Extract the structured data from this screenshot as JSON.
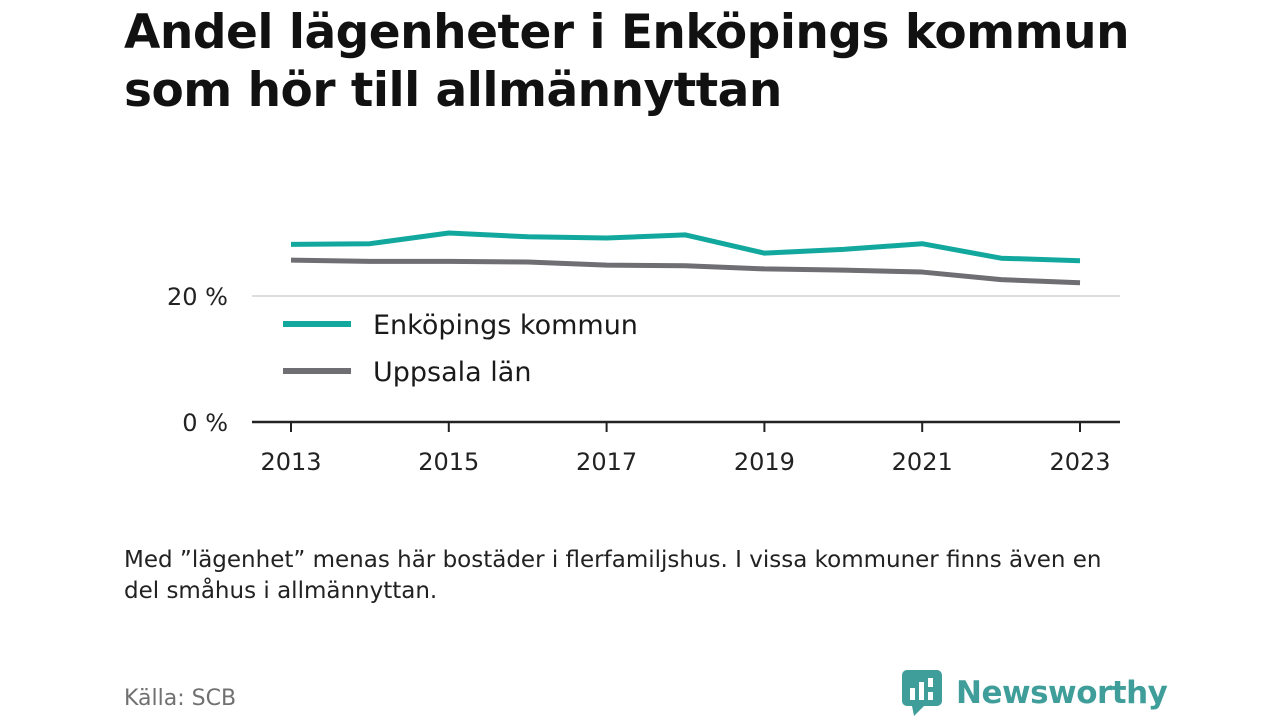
{
  "title": "Andel lägenheter i Enköpings kommun som hör till allmännyttan",
  "note": "Med ”lägenhet” menas här bostäder i flerfamiljshus. I vissa kommuner finns även en del småhus i allmännyttan.",
  "source": "Källa: SCB",
  "logo": {
    "text": "Newsworthy",
    "icon": "newsworthy-chat-bars-icon"
  },
  "colors": {
    "enkoping": "#13a89e",
    "uppsala": "#6e6e73",
    "axis": "#222222",
    "grid": "#dddddd",
    "logo": "#3f9e99"
  },
  "chart_data": {
    "type": "line",
    "x": [
      2013,
      2014,
      2015,
      2016,
      2017,
      2018,
      2019,
      2020,
      2021,
      2022,
      2023
    ],
    "series": [
      {
        "name": "Enköpings kommun",
        "values": [
          28.2,
          28.3,
          30.0,
          29.4,
          29.2,
          29.7,
          26.8,
          27.4,
          28.3,
          26.0,
          25.6
        ]
      },
      {
        "name": "Uppsala län",
        "values": [
          25.7,
          25.5,
          25.5,
          25.4,
          24.9,
          24.8,
          24.3,
          24.1,
          23.8,
          22.6,
          22.1
        ]
      }
    ],
    "xticks": [
      "2013",
      "2015",
      "2017",
      "2019",
      "2021",
      "2023"
    ],
    "yticks": [
      {
        "value": 0,
        "label": "0 %"
      },
      {
        "value": 20,
        "label": "20 %"
      }
    ],
    "ylim": [
      0,
      34
    ],
    "xlim": [
      2013,
      2023
    ],
    "grid": true,
    "legend": "inside-bottom-left"
  }
}
